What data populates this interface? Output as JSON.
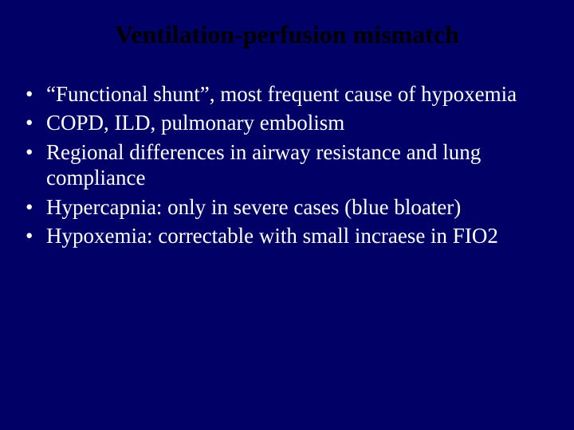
{
  "slide": {
    "background_color": "#000066",
    "title": {
      "text": "Ventilation-perfusion mismatch",
      "color": "#000000",
      "font_size": 32,
      "font_weight": "bold",
      "align": "center"
    },
    "bullets": {
      "color": "#ffffff",
      "font_size": 27,
      "marker": "•",
      "items": [
        "“Functional shunt”, most frequent cause of hypoxemia",
        "COPD, ILD, pulmonary embolism",
        "Regional differences in airway resistance and lung compliance",
        "Hypercapnia: only in severe cases (blue bloater)",
        "Hypoxemia: correctable with small incraese in FIO2"
      ]
    }
  }
}
